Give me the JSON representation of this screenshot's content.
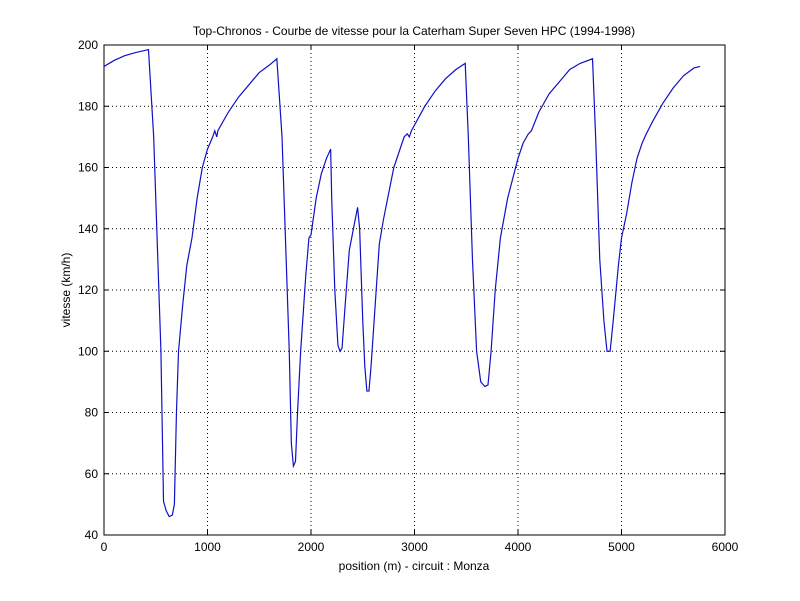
{
  "chart_data": {
    "type": "line",
    "title": "Top-Chronos - Courbe de vitesse pour la Caterham Super Seven HPC (1994-1998)",
    "xlabel": "position (m) - circuit : Monza",
    "ylabel": "vitesse (km/h)",
    "xlim": [
      0,
      6000
    ],
    "xticks": [
      0,
      1000,
      2000,
      3000,
      4000,
      5000,
      6000
    ],
    "ylim": [
      40,
      200
    ],
    "yticks": [
      40,
      60,
      80,
      100,
      120,
      140,
      160,
      180,
      200
    ],
    "grid": true,
    "series": [
      {
        "color": "#1010c8",
        "x": [
          0,
          100,
          200,
          300,
          430,
          480,
          520,
          550,
          575,
          600,
          630,
          660,
          680,
          700,
          720,
          760,
          800,
          850,
          900,
          950,
          1000,
          1050,
          1070,
          1090,
          1100,
          1200,
          1300,
          1400,
          1500,
          1600,
          1670,
          1720,
          1760,
          1790,
          1810,
          1830,
          1850,
          1870,
          1900,
          1950,
          1980,
          2000,
          2050,
          2100,
          2150,
          2190,
          2200,
          2230,
          2260,
          2280,
          2300,
          2330,
          2370,
          2410,
          2450,
          2470,
          2500,
          2520,
          2540,
          2560,
          2580,
          2620,
          2660,
          2700,
          2800,
          2900,
          2930,
          2950,
          2970,
          3100,
          3200,
          3300,
          3400,
          3490,
          3520,
          3560,
          3600,
          3640,
          3680,
          3710,
          3740,
          3780,
          3830,
          3900,
          4000,
          4050,
          4100,
          4130,
          4200,
          4300,
          4400,
          4500,
          4600,
          4720,
          4750,
          4790,
          4830,
          4860,
          4890,
          4920,
          4970,
          5000,
          5050,
          5100,
          5150,
          5200,
          5240,
          5300,
          5400,
          5500,
          5600,
          5700,
          5760
        ],
        "values": [
          193,
          195,
          196.5,
          197.5,
          198.5,
          170,
          130,
          100,
          51,
          48,
          46,
          46.5,
          50,
          80,
          100,
          115,
          128,
          137,
          150,
          160,
          166,
          170,
          172,
          170,
          172,
          178,
          183,
          187,
          191,
          193.5,
          195.5,
          170,
          130,
          100,
          70,
          62.5,
          64,
          80,
          100,
          125,
          137,
          138,
          150,
          158,
          163,
          166,
          150,
          120,
          102,
          100,
          101,
          115,
          133,
          140,
          147,
          140,
          110,
          95,
          87,
          87,
          95,
          115,
          135,
          143,
          160,
          170,
          171,
          170,
          172,
          180,
          185,
          189,
          192,
          194,
          170,
          130,
          100,
          90,
          88.5,
          89,
          100,
          120,
          137,
          150,
          163,
          168,
          171,
          172,
          178,
          184,
          188,
          192,
          194,
          195.5,
          170,
          130,
          110,
          100,
          100,
          110,
          128,
          137,
          145,
          155,
          163,
          168,
          171,
          175,
          181,
          186,
          190,
          192.5,
          193
        ]
      }
    ]
  }
}
